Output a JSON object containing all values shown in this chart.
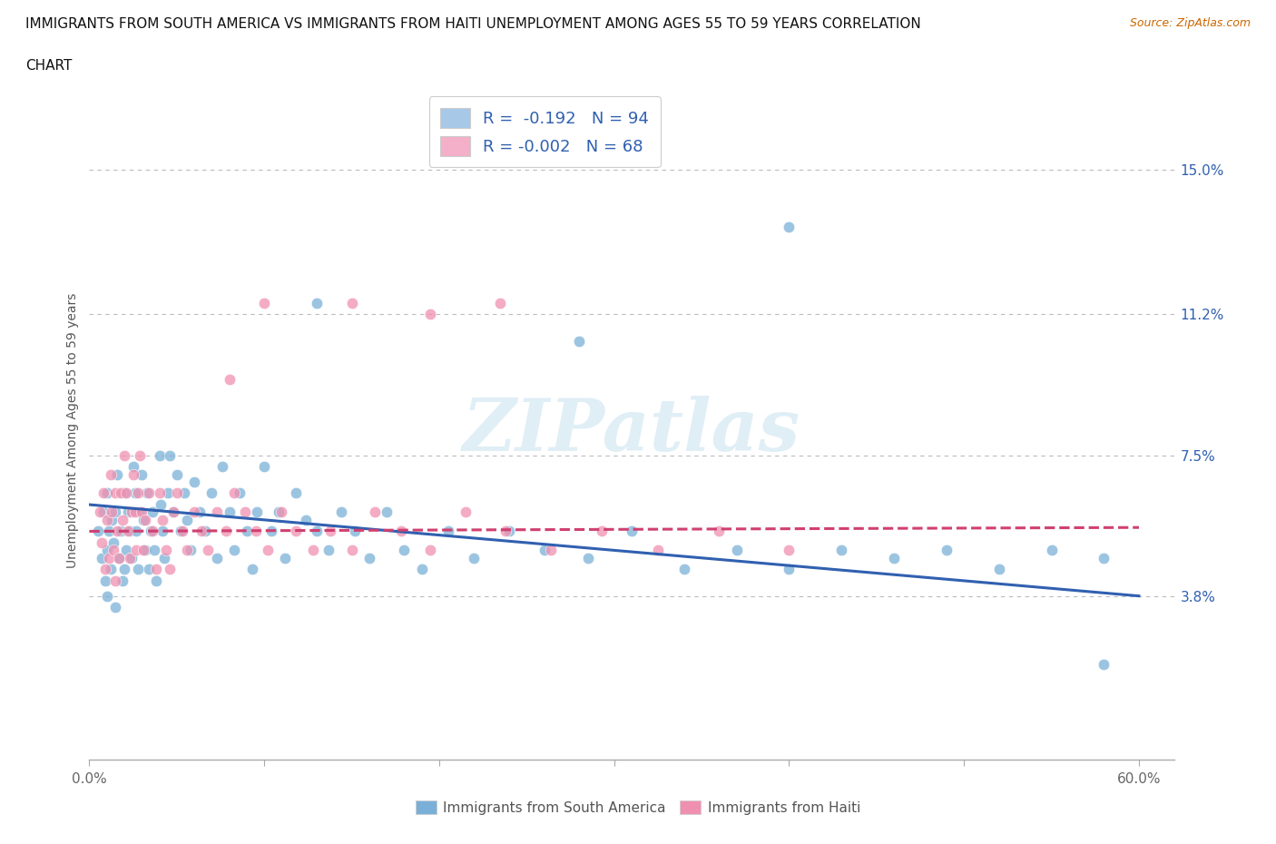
{
  "title_line1": "IMMIGRANTS FROM SOUTH AMERICA VS IMMIGRANTS FROM HAITI UNEMPLOYMENT AMONG AGES 55 TO 59 YEARS CORRELATION",
  "title_line2": "CHART",
  "source_text": "Source: ZipAtlas.com",
  "ylabel": "Unemployment Among Ages 55 to 59 years",
  "xlim": [
    0.0,
    0.62
  ],
  "ylim": [
    -0.005,
    0.168
  ],
  "xtick_vals": [
    0.0,
    0.1,
    0.2,
    0.3,
    0.4,
    0.5,
    0.6
  ],
  "xtick_labels": [
    "0.0%",
    "",
    "",
    "",
    "",
    "",
    "60.0%"
  ],
  "ytick_vals": [
    0.038,
    0.075,
    0.112,
    0.15
  ],
  "ytick_labels": [
    "3.8%",
    "7.5%",
    "11.2%",
    "15.0%"
  ],
  "legend_entries": [
    {
      "label": "R =  -0.192   N = 94",
      "color": "#a8c8e8"
    },
    {
      "label": "R = -0.002   N = 68",
      "color": "#f4b0c8"
    }
  ],
  "sa_color": "#7ab0d8",
  "haiti_color": "#f090b0",
  "sa_trend_color": "#3060b0",
  "haiti_trend_color": "#d04070",
  "background_color": "#ffffff",
  "grid_color": "#bbbbbb",
  "watermark_text": "ZIPatlas",
  "sa_trend_x0": 0.0,
  "sa_trend_y0": 0.062,
  "sa_trend_x1": 0.6,
  "sa_trend_y1": 0.038,
  "haiti_trend_x0": 0.0,
  "haiti_trend_y0": 0.055,
  "haiti_trend_x1": 0.6,
  "haiti_trend_y1": 0.056,
  "sa_x": [
    0.005,
    0.007,
    0.008,
    0.009,
    0.01,
    0.01,
    0.01,
    0.011,
    0.012,
    0.013,
    0.014,
    0.015,
    0.015,
    0.016,
    0.017,
    0.018,
    0.019,
    0.02,
    0.02,
    0.021,
    0.022,
    0.023,
    0.024,
    0.025,
    0.026,
    0.027,
    0.028,
    0.029,
    0.03,
    0.031,
    0.032,
    0.033,
    0.034,
    0.035,
    0.036,
    0.037,
    0.038,
    0.04,
    0.041,
    0.042,
    0.043,
    0.045,
    0.046,
    0.048,
    0.05,
    0.052,
    0.054,
    0.056,
    0.058,
    0.06,
    0.063,
    0.066,
    0.07,
    0.073,
    0.076,
    0.08,
    0.083,
    0.086,
    0.09,
    0.093,
    0.096,
    0.1,
    0.104,
    0.108,
    0.112,
    0.118,
    0.124,
    0.13,
    0.137,
    0.144,
    0.152,
    0.16,
    0.17,
    0.18,
    0.19,
    0.205,
    0.22,
    0.24,
    0.26,
    0.285,
    0.31,
    0.34,
    0.37,
    0.4,
    0.43,
    0.46,
    0.49,
    0.52,
    0.55,
    0.58,
    0.4,
    0.28,
    0.13,
    0.58
  ],
  "sa_y": [
    0.055,
    0.048,
    0.06,
    0.042,
    0.05,
    0.038,
    0.065,
    0.055,
    0.045,
    0.058,
    0.052,
    0.06,
    0.035,
    0.07,
    0.048,
    0.055,
    0.042,
    0.065,
    0.045,
    0.05,
    0.06,
    0.055,
    0.048,
    0.072,
    0.065,
    0.055,
    0.045,
    0.06,
    0.07,
    0.058,
    0.05,
    0.065,
    0.045,
    0.055,
    0.06,
    0.05,
    0.042,
    0.075,
    0.062,
    0.055,
    0.048,
    0.065,
    0.075,
    0.06,
    0.07,
    0.055,
    0.065,
    0.058,
    0.05,
    0.068,
    0.06,
    0.055,
    0.065,
    0.048,
    0.072,
    0.06,
    0.05,
    0.065,
    0.055,
    0.045,
    0.06,
    0.072,
    0.055,
    0.06,
    0.048,
    0.065,
    0.058,
    0.055,
    0.05,
    0.06,
    0.055,
    0.048,
    0.06,
    0.05,
    0.045,
    0.055,
    0.048,
    0.055,
    0.05,
    0.048,
    0.055,
    0.045,
    0.05,
    0.045,
    0.05,
    0.048,
    0.05,
    0.045,
    0.05,
    0.048,
    0.135,
    0.105,
    0.115,
    0.02
  ],
  "haiti_x": [
    0.006,
    0.007,
    0.008,
    0.009,
    0.01,
    0.011,
    0.012,
    0.013,
    0.014,
    0.015,
    0.015,
    0.016,
    0.017,
    0.018,
    0.019,
    0.02,
    0.021,
    0.022,
    0.023,
    0.024,
    0.025,
    0.026,
    0.027,
    0.028,
    0.029,
    0.03,
    0.031,
    0.032,
    0.034,
    0.036,
    0.038,
    0.04,
    0.042,
    0.044,
    0.046,
    0.048,
    0.05,
    0.053,
    0.056,
    0.06,
    0.064,
    0.068,
    0.073,
    0.078,
    0.083,
    0.089,
    0.095,
    0.102,
    0.11,
    0.118,
    0.128,
    0.138,
    0.15,
    0.163,
    0.178,
    0.195,
    0.215,
    0.238,
    0.264,
    0.293,
    0.325,
    0.36,
    0.4,
    0.235,
    0.195,
    0.15,
    0.1,
    0.08
  ],
  "haiti_y": [
    0.06,
    0.052,
    0.065,
    0.045,
    0.058,
    0.048,
    0.07,
    0.06,
    0.05,
    0.065,
    0.042,
    0.055,
    0.048,
    0.065,
    0.058,
    0.075,
    0.065,
    0.055,
    0.048,
    0.06,
    0.07,
    0.06,
    0.05,
    0.065,
    0.075,
    0.06,
    0.05,
    0.058,
    0.065,
    0.055,
    0.045,
    0.065,
    0.058,
    0.05,
    0.045,
    0.06,
    0.065,
    0.055,
    0.05,
    0.06,
    0.055,
    0.05,
    0.06,
    0.055,
    0.065,
    0.06,
    0.055,
    0.05,
    0.06,
    0.055,
    0.05,
    0.055,
    0.05,
    0.06,
    0.055,
    0.05,
    0.06,
    0.055,
    0.05,
    0.055,
    0.05,
    0.055,
    0.05,
    0.115,
    0.112,
    0.115,
    0.115,
    0.095
  ]
}
